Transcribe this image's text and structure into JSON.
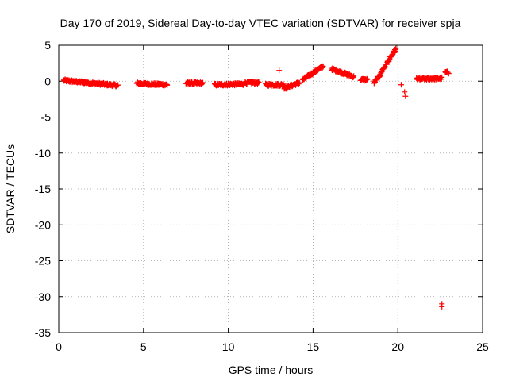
{
  "chart_data": {
    "type": "scatter",
    "title": "Day 170 of 2019, Sidereal Day-to-day VTEC variation (SDTVAR) for receiver spja",
    "xlabel": "GPS time / hours",
    "ylabel": "SDTVAR / TECUs",
    "xlim": [
      0,
      25
    ],
    "ylim": [
      -35,
      5
    ],
    "xticks": [
      "0",
      "5",
      "10",
      "15",
      "20",
      "25"
    ],
    "yticks": [
      "5",
      "0",
      "-5",
      "-10",
      "-15",
      "-20",
      "-25",
      "-30",
      "-35"
    ],
    "grid": true,
    "marker": "plus",
    "color": "#ff0000",
    "segments": [
      {
        "x0": 0.3,
        "x1": 3.5,
        "y0": 0.1,
        "y1": -0.6
      },
      {
        "x0": 4.6,
        "x1": 6.4,
        "y0": -0.3,
        "y1": -0.5
      },
      {
        "x0": 7.5,
        "x1": 8.5,
        "y0": -0.3,
        "y1": -0.3
      },
      {
        "x0": 9.2,
        "x1": 10.9,
        "y0": -0.5,
        "y1": -0.4
      },
      {
        "x0": 11.0,
        "x1": 11.8,
        "y0": -0.2,
        "y1": -0.2
      },
      {
        "x0": 12.2,
        "x1": 13.3,
        "y0": -0.5,
        "y1": -0.5
      },
      {
        "x0": 13.3,
        "x1": 14.2,
        "y0": -1.0,
        "y1": -0.2
      },
      {
        "x0": 14.4,
        "x1": 15.6,
        "y0": 0.2,
        "y1": 2.1
      },
      {
        "x0": 16.1,
        "x1": 17.4,
        "y0": 1.7,
        "y1": 0.6
      },
      {
        "x0": 17.8,
        "x1": 18.2,
        "y0": 0.2,
        "y1": 0.2
      },
      {
        "x0": 18.6,
        "x1": 19.0,
        "y0": -0.2,
        "y1": 1.0
      },
      {
        "x0": 19.0,
        "x1": 19.9,
        "y0": 1.2,
        "y1": 4.5
      },
      {
        "x0": 21.1,
        "x1": 22.6,
        "y0": 0.3,
        "y1": 0.4
      },
      {
        "x0": 22.8,
        "x1": 23.0,
        "y0": 1.2,
        "y1": 1.2
      }
    ],
    "isolated_points": [
      {
        "x": 13.0,
        "y": 1.5
      },
      {
        "x": 20.2,
        "y": -0.5
      },
      {
        "x": 20.4,
        "y": -1.5
      },
      {
        "x": 20.45,
        "y": -2.1
      },
      {
        "x": 22.6,
        "y": -31.0
      },
      {
        "x": 22.6,
        "y": -31.4
      }
    ]
  }
}
